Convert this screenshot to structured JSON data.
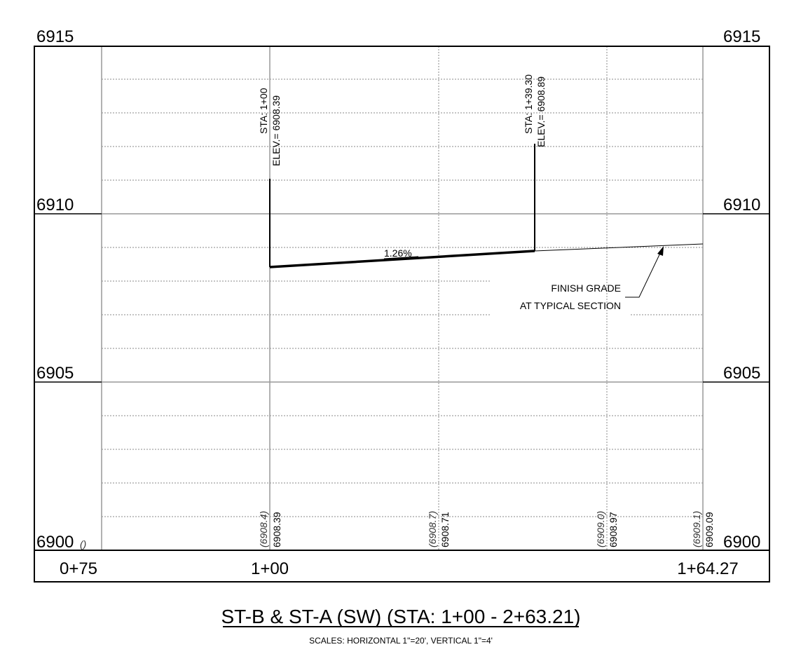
{
  "elevation_labels": {
    "top": "6915",
    "mid": "6910",
    "low": "6905",
    "bottom": "6900",
    "bottom_marker": "()"
  },
  "stations": [
    "0+75",
    "1+00",
    "1+64.27"
  ],
  "structures": [
    {
      "sta": "STA: 1+00",
      "elev": "ELEV.= 6908.39"
    },
    {
      "sta": "STA: 1+39.30",
      "elev": "ELEV.= 6908.89"
    }
  ],
  "slope_label": "1.26%",
  "callout": {
    "line1": "FINISH GRADE",
    "line2": "AT TYPICAL SECTION"
  },
  "bottom_values": [
    {
      "existing": "(6908.4)",
      "proposed": "6908.39"
    },
    {
      "existing": "(6908.7)",
      "proposed": "6908.71"
    },
    {
      "existing": "(6909.0)",
      "proposed": "6908.97"
    },
    {
      "existing": "(6909.1)",
      "proposed": "6909.09"
    }
  ],
  "title": "ST-B & ST-A (SW) (STA: 1+00 - 2+63.21)",
  "scale_note": "SCALES: HORIZONTAL 1\"=20', VERTICAL 1\"=4'"
}
